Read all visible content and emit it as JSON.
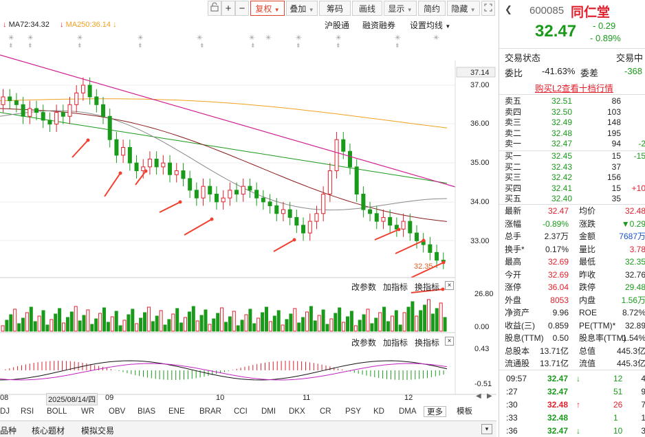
{
  "toolbar": {
    "fuquan": "复权",
    "diejia": "叠加",
    "chouma": "筹码",
    "huaxian": "画线",
    "xianshi": "显示",
    "jianyue": "简约",
    "yincang": "隐藏"
  },
  "ma_legend": {
    "ma72": "MA72:34.32",
    "ma250": "MA250:36.14"
  },
  "subheader": {
    "hugutong": "沪股通",
    "rongzi": "融资融券",
    "set_ma": "设置均线"
  },
  "price_axis": [
    "37.14",
    "37.00",
    "36.00",
    "35.00",
    "34.00",
    "33.00"
  ],
  "low_label": "32.35",
  "panel_tools": {
    "change_params": "改参数",
    "add_indicator": "加指标",
    "switch_indicator": "换指标"
  },
  "volume_axis": [
    "26.80",
    "0.00"
  ],
  "macd_axis": [
    "0.43",
    "-0.51"
  ],
  "date_axis": {
    "d08": "08",
    "date_box": "2025/08/14/四",
    "d09": "09",
    "d10": "10",
    "d11": "11",
    "d12": "12"
  },
  "indicator_tabs": [
    "DJ",
    "RSI",
    "BOLL",
    "WR",
    "OBV",
    "BIAS",
    "ENE",
    "BRAR",
    "CCI",
    "DMI",
    "DKX",
    "CR",
    "PSY",
    "KD",
    "DMA"
  ],
  "more": "更多",
  "moban": "模板",
  "bottom_tabs": [
    "品种",
    "核心题材",
    "模拟交易"
  ],
  "stock": {
    "code": "600085",
    "name": "同仁堂",
    "price": "32.47",
    "change": "- 0.29",
    "change_pct": "- 0.89%"
  },
  "status": {
    "label": "交易状态",
    "value": "交易中",
    "weibi_label": "委比",
    "weibi_value": "-41.63%",
    "weicha_label": "委差",
    "weicha_value": "-368",
    "l2_link": "购买L2查看十档行情"
  },
  "asks": [
    {
      "label": "卖五",
      "price": "32.51",
      "vol": "86",
      "chg": ""
    },
    {
      "label": "卖四",
      "price": "32.50",
      "vol": "103",
      "chg": ""
    },
    {
      "label": "卖三",
      "price": "32.49",
      "vol": "148",
      "chg": ""
    },
    {
      "label": "卖二",
      "price": "32.48",
      "vol": "195",
      "chg": ""
    },
    {
      "label": "卖一",
      "price": "32.47",
      "vol": "94",
      "chg": "-2"
    }
  ],
  "bids": [
    {
      "label": "买一",
      "price": "32.45",
      "vol": "15",
      "chg": "-15"
    },
    {
      "label": "买二",
      "price": "32.43",
      "vol": "37",
      "chg": ""
    },
    {
      "label": "买三",
      "price": "32.42",
      "vol": "156",
      "chg": ""
    },
    {
      "label": "买四",
      "price": "32.41",
      "vol": "15",
      "chg": "+10"
    },
    {
      "label": "买五",
      "price": "32.40",
      "vol": "35",
      "chg": ""
    }
  ],
  "stats": [
    {
      "l1": "最新",
      "v1": "32.47",
      "c1": "red",
      "l2": "均价",
      "v2": "32.48",
      "c2": "red"
    },
    {
      "l1": "涨幅",
      "v1": "-0.89%",
      "c1": "green",
      "l2": "涨跌",
      "v2": "▼0.29",
      "c2": "green"
    },
    {
      "l1": "总手",
      "v1": "2.37万",
      "c1": "",
      "l2": "金额",
      "v2": "7687万",
      "c2": "blue"
    },
    {
      "l1": "换手*",
      "v1": "0.17%",
      "c1": "",
      "l2": "量比",
      "v2": "3.78",
      "c2": "red"
    },
    {
      "l1": "最高",
      "v1": "32.69",
      "c1": "red",
      "l2": "最低",
      "v2": "32.35",
      "c2": "green"
    },
    {
      "l1": "今开",
      "v1": "32.69",
      "c1": "red",
      "l2": "昨收",
      "v2": "32.76",
      "c2": ""
    },
    {
      "l1": "涨停",
      "v1": "36.04",
      "c1": "red",
      "l2": "跌停",
      "v2": "29.48",
      "c2": "green"
    },
    {
      "l1": "外盘",
      "v1": "8053",
      "c1": "red",
      "l2": "内盘",
      "v2": "1.56万",
      "c2": "green"
    },
    {
      "l1": "净资产",
      "v1": "9.96",
      "c1": "",
      "l2": "ROE",
      "v2": "8.72%",
      "c2": ""
    },
    {
      "l1": "收益(三)",
      "v1": "0.859",
      "c1": "",
      "l2": "PE(TTM)*",
      "v2": "32.89",
      "c2": ""
    },
    {
      "l1": "股息(TTM)",
      "v1": "0.50",
      "c1": "",
      "l2": "股息率(TTM)",
      "v2": "1.54%",
      "c2": ""
    },
    {
      "l1": "总股本",
      "v1": "13.71亿",
      "c1": "",
      "l2": "总值",
      "v2": "445.3亿",
      "c2": ""
    },
    {
      "l1": "流通股",
      "v1": "13.71亿",
      "c1": "",
      "l2": "流值",
      "v2": "445.3亿",
      "c2": ""
    }
  ],
  "ticks": [
    {
      "time": "09:57",
      "price": "32.47",
      "dir": "down",
      "vol": "12",
      "n": "4"
    },
    {
      "time": ":27",
      "price": "32.47",
      "dir": "",
      "vol": "51",
      "n": "9"
    },
    {
      "time": ":30",
      "price": "32.48",
      "dir": "up",
      "vol": "26",
      "n": "7"
    },
    {
      "time": ":33",
      "price": "32.48",
      "dir": "",
      "vol": "1",
      "n": "1"
    },
    {
      "time": ":36",
      "price": "32.47",
      "dir": "down",
      "vol": "10",
      "n": "3"
    }
  ],
  "colors": {
    "up": "#e0202c",
    "down": "#1a9a1a",
    "ma250": "#f0a020",
    "trendline": "#d0208f"
  }
}
